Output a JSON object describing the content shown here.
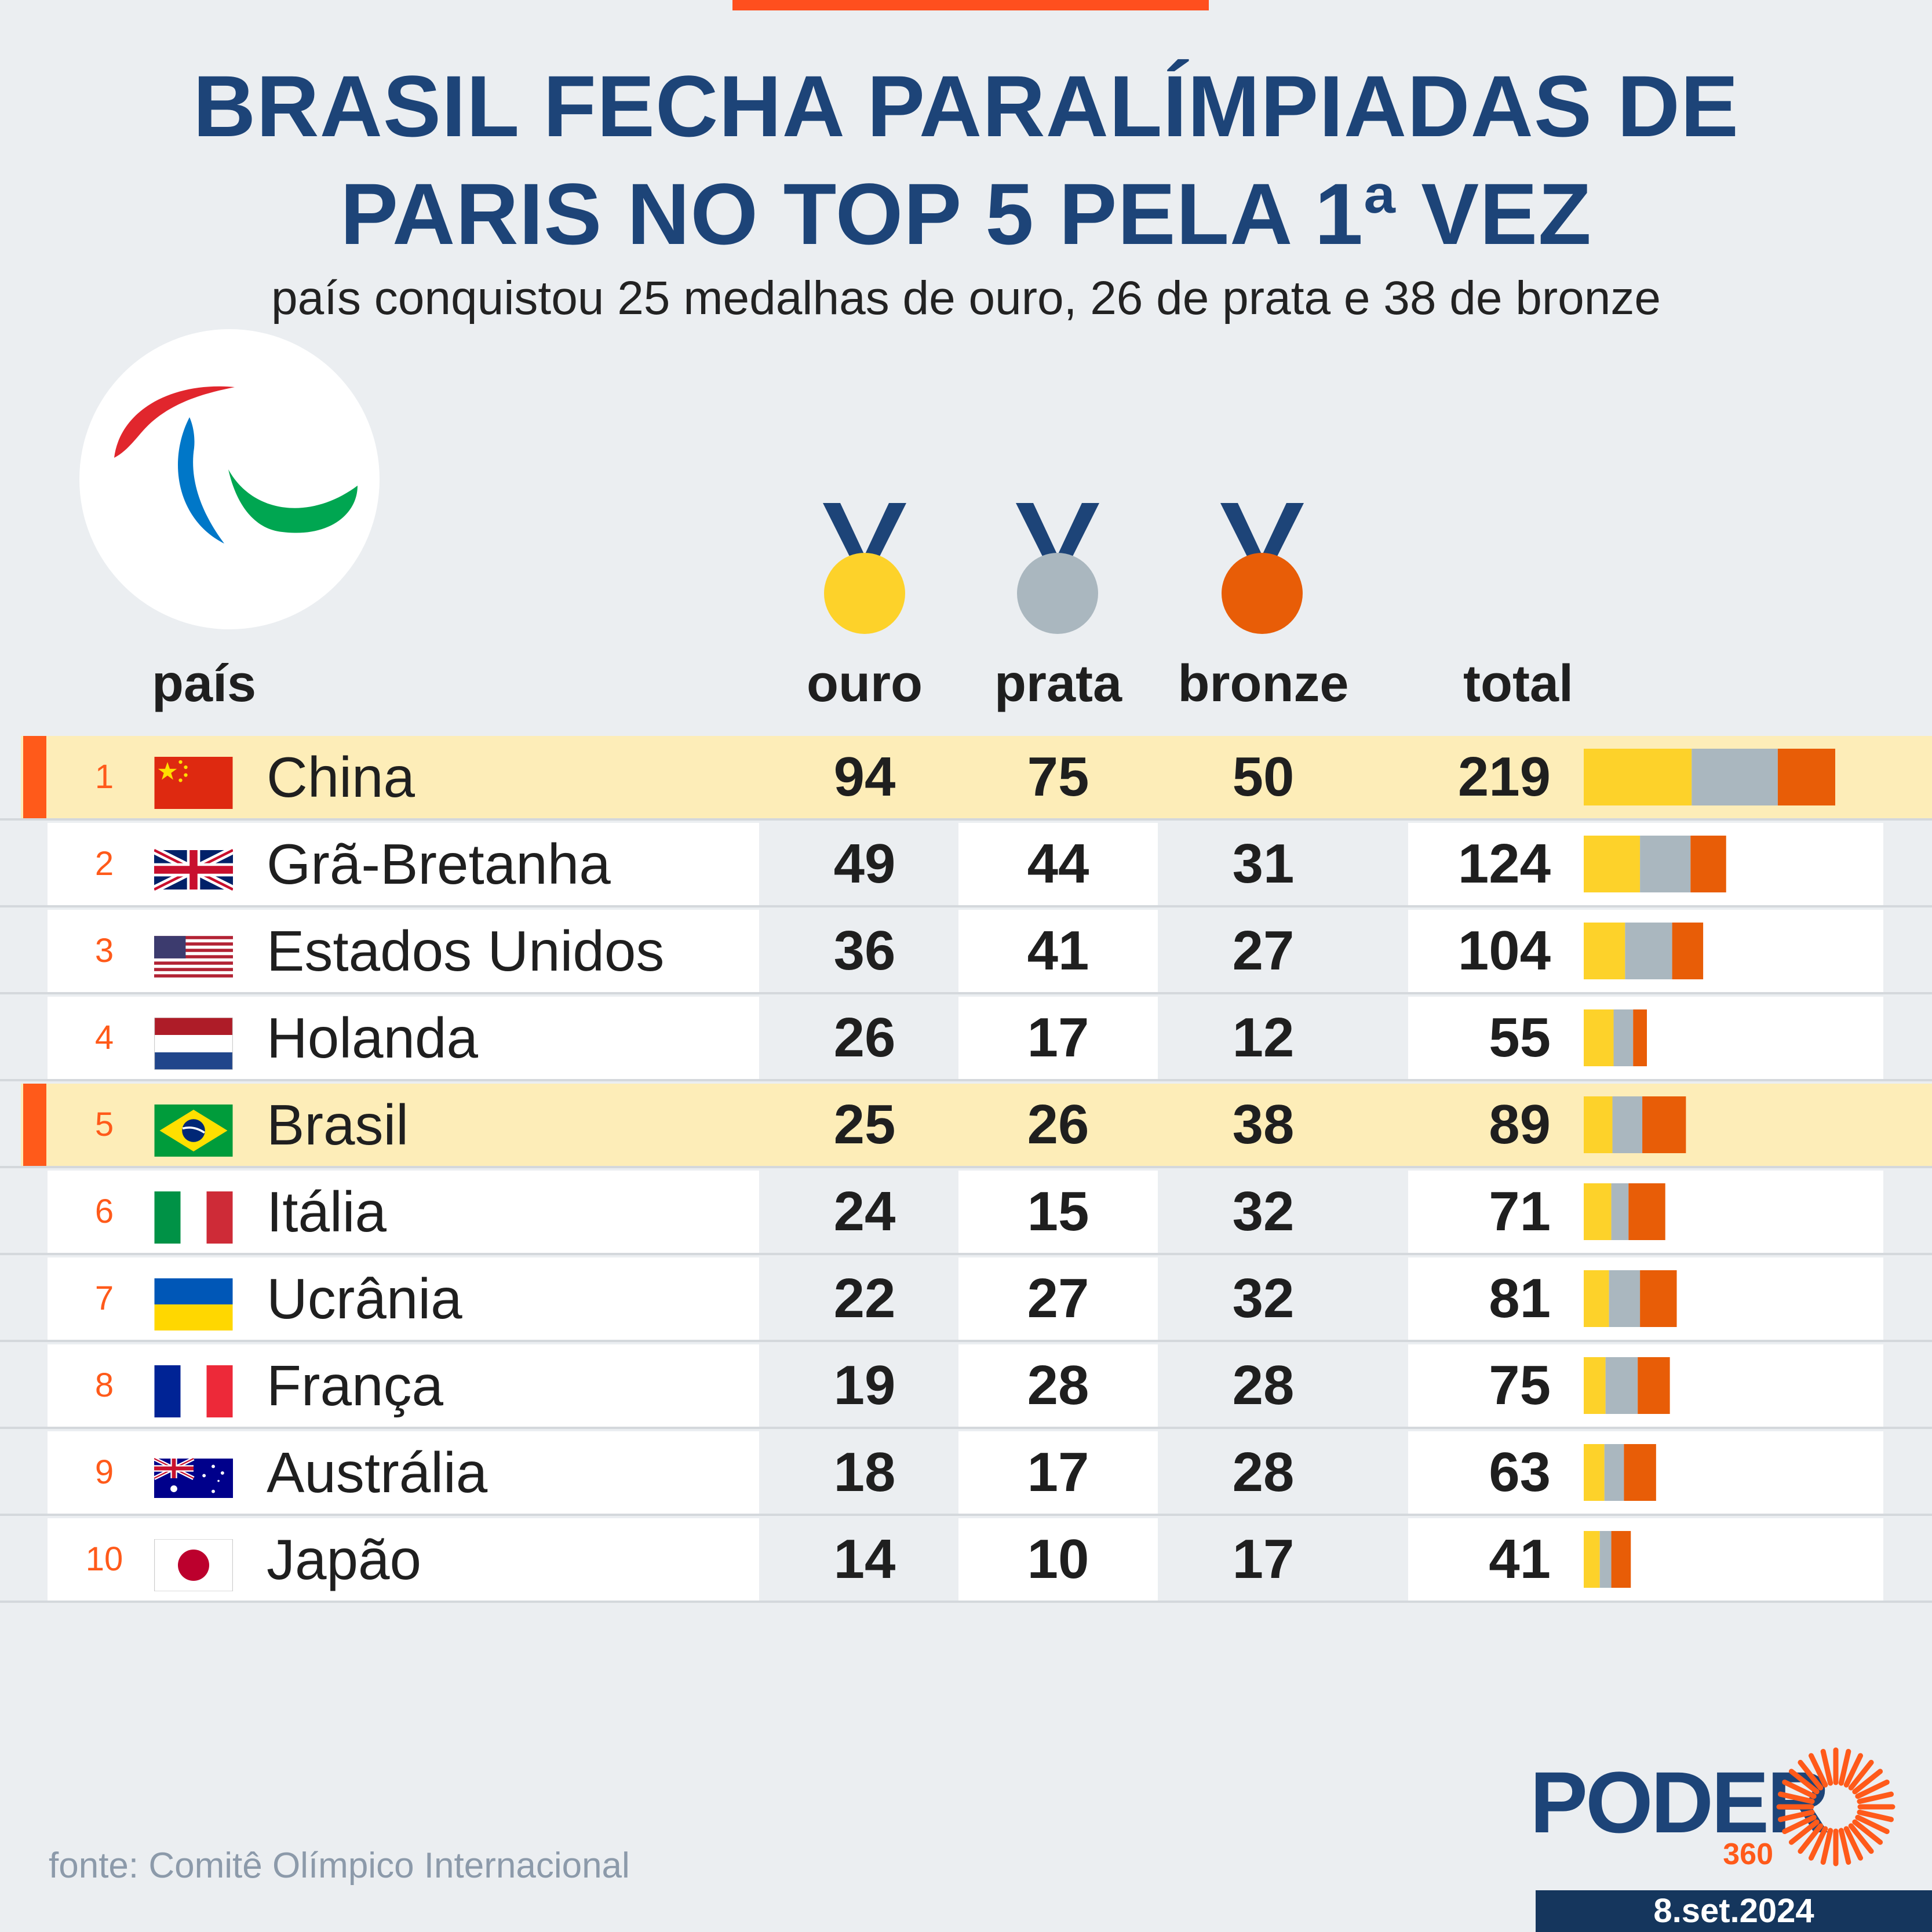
{
  "header": {
    "title_line1": "BRASIL FECHA PARALÍMPIADAS DE",
    "title_line2": "PARIS NO TOP 5 PELA 1ª VEZ",
    "subtitle": "país conquistou 25 medalhas de ouro, 26 de prata e 38 de bronze"
  },
  "columns": {
    "country": "país",
    "gold": "ouro",
    "silver": "prata",
    "bronze": "bronze",
    "total": "total"
  },
  "colors": {
    "gold": "#fdd22a",
    "silver": "#aab7bf",
    "bronze": "#e85d07",
    "highlight": "#fdedb8",
    "accent": "#ff5a1a",
    "title": "#1d4478"
  },
  "chart_data": {
    "type": "table",
    "columns": [
      "país",
      "ouro",
      "prata",
      "bronze",
      "total"
    ],
    "rows": [
      {
        "rank": "1",
        "country": "China",
        "flag": "china-flag",
        "gold": 94,
        "silver": 75,
        "bronze": 50,
        "total": 219,
        "highlight": true
      },
      {
        "rank": "2",
        "country": "Grã-Bretanha",
        "flag": "uk-flag",
        "gold": 49,
        "silver": 44,
        "bronze": 31,
        "total": 124,
        "highlight": false
      },
      {
        "rank": "3",
        "country": "Estados Unidos",
        "flag": "usa-flag",
        "gold": 36,
        "silver": 41,
        "bronze": 27,
        "total": 104,
        "highlight": false
      },
      {
        "rank": "4",
        "country": "Holanda",
        "flag": "netherlands-flag",
        "gold": 26,
        "silver": 17,
        "bronze": 12,
        "total": 55,
        "highlight": false
      },
      {
        "rank": "5",
        "country": "Brasil",
        "flag": "brazil-flag",
        "gold": 25,
        "silver": 26,
        "bronze": 38,
        "total": 89,
        "highlight": true
      },
      {
        "rank": "6",
        "country": "Itália",
        "flag": "italy-flag",
        "gold": 24,
        "silver": 15,
        "bronze": 32,
        "total": 71,
        "highlight": false
      },
      {
        "rank": "7",
        "country": "Ucrânia",
        "flag": "ukraine-flag",
        "gold": 22,
        "silver": 27,
        "bronze": 32,
        "total": 81,
        "highlight": false
      },
      {
        "rank": "8",
        "country": "França",
        "flag": "france-flag",
        "gold": 19,
        "silver": 28,
        "bronze": 28,
        "total": 75,
        "highlight": false
      },
      {
        "rank": "9",
        "country": "Austrália",
        "flag": "australia-flag",
        "gold": 18,
        "silver": 17,
        "bronze": 28,
        "total": 63,
        "highlight": false
      },
      {
        "rank": "10",
        "country": "Japão",
        "flag": "japan-flag",
        "gold": 14,
        "silver": 10,
        "bronze": 17,
        "total": 41,
        "highlight": false
      }
    ]
  },
  "footer": {
    "source": "fonte: Comitê Olímpico Internacional",
    "brand_name": "PODER",
    "brand_number": "360",
    "date": "8.set.2024"
  }
}
